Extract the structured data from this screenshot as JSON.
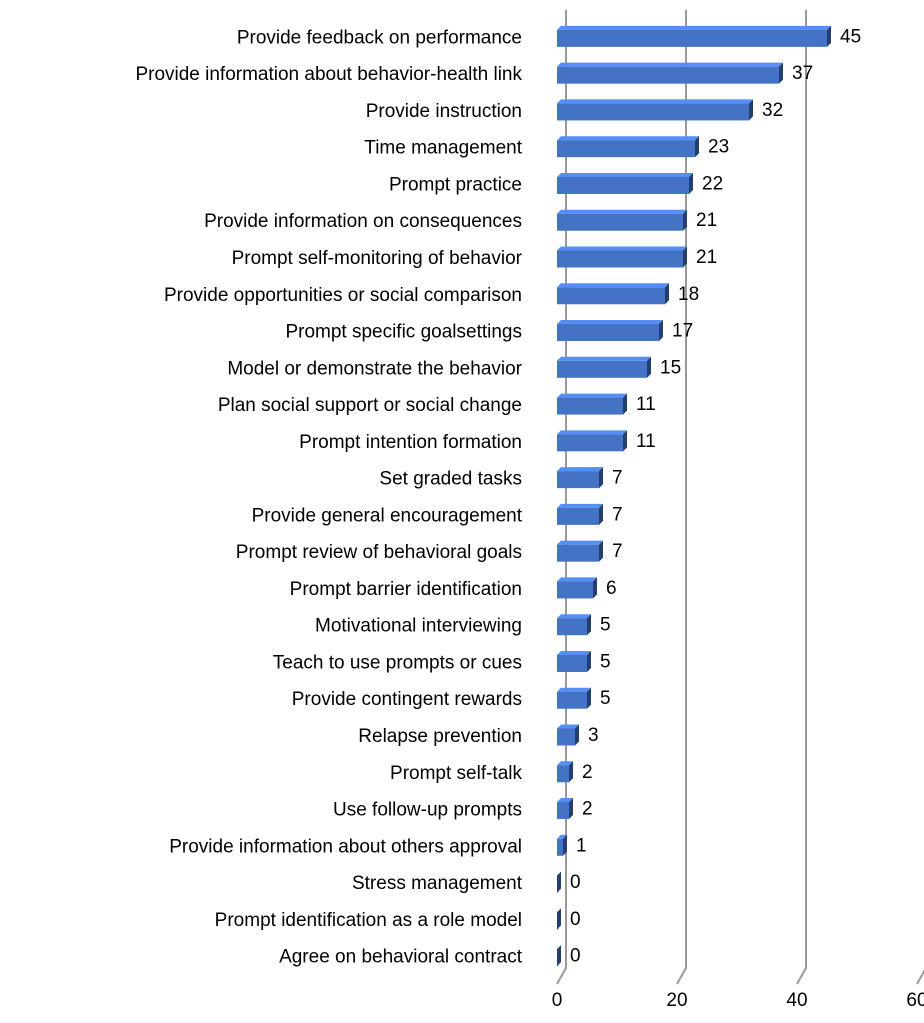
{
  "chart_data": {
    "type": "bar",
    "orientation": "horizontal",
    "categories": [
      "Provide feedback on performance",
      "Provide information about behavior-health link",
      "Provide instruction",
      "Time management",
      "Prompt practice",
      "Provide information on consequences",
      "Prompt self-monitoring of behavior",
      "Provide opportunities or social comparison",
      "Prompt specific goalsettings",
      "Model or demonstrate the behavior",
      "Plan social support or social change",
      "Prompt intention formation",
      "Set graded tasks",
      "Provide general encouragement",
      "Prompt review of behavioral goals",
      "Prompt barrier identification",
      "Motivational interviewing",
      "Teach to use prompts or cues",
      "Provide contingent rewards",
      "Relapse prevention",
      "Prompt self-talk",
      "Use follow-up prompts",
      "Provide information about others approval",
      "Stress management",
      "Prompt identification as a role model",
      "Agree on behavioral contract"
    ],
    "values": [
      45,
      37,
      32,
      23,
      22,
      21,
      21,
      18,
      17,
      15,
      11,
      11,
      7,
      7,
      7,
      6,
      5,
      5,
      5,
      3,
      2,
      2,
      1,
      0,
      0,
      0
    ],
    "color": "#4472c4",
    "xlim": [
      0,
      60
    ],
    "xticks": [
      0,
      20,
      40,
      60
    ],
    "grid": true
  }
}
